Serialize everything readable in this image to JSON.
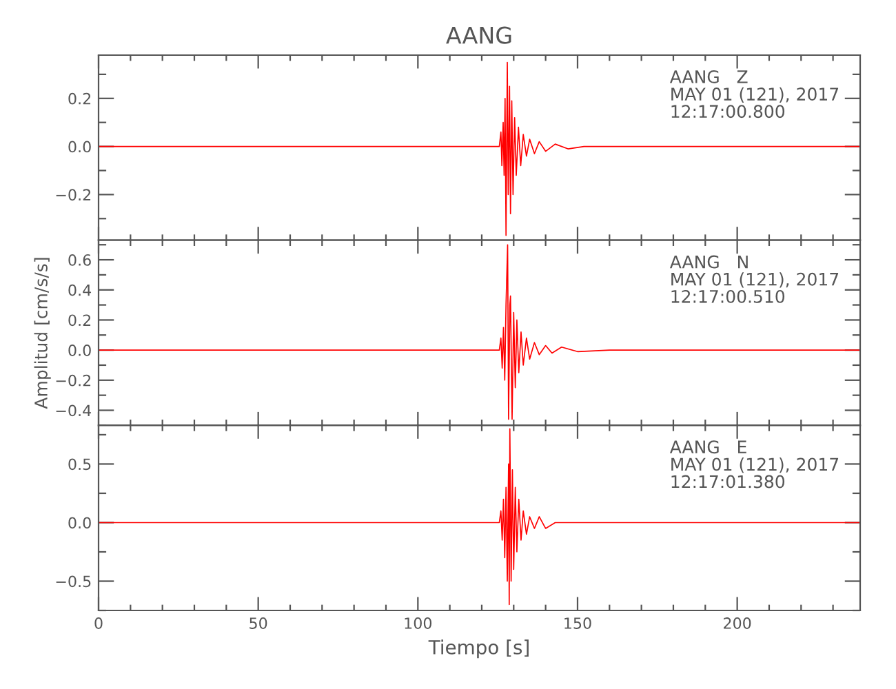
{
  "chart_data": [
    {
      "type": "line",
      "title": "AANG",
      "tick_labels": "y",
      "annotations": [
        "AANG   Z\nMAY 01 (121), 2017\n12:17:00.800"
      ],
      "xlim": [
        0,
        238.5
      ],
      "xticks": [
        0,
        {
          "value": 10,
          "label": null
        },
        {
          "value": 20,
          "label": null
        },
        {
          "value": 30,
          "label": null
        },
        {
          "value": 40,
          "label": null
        },
        50,
        {
          "value": 60,
          "label": null
        },
        {
          "value": 70,
          "label": null
        },
        {
          "value": 80,
          "label": null
        },
        {
          "value": 90,
          "label": null
        },
        100,
        {
          "value": 110,
          "label": null
        },
        {
          "value": 120,
          "label": null
        },
        {
          "value": 130,
          "label": null
        },
        {
          "value": 140,
          "label": null
        },
        150,
        {
          "value": 160,
          "label": null
        },
        {
          "value": 170,
          "label": null
        },
        {
          "value": 180,
          "label": null
        },
        {
          "value": 190,
          "label": null
        },
        200,
        {
          "value": 210,
          "label": null
        },
        {
          "value": 220,
          "label": null
        },
        {
          "value": 230,
          "label": null
        }
      ],
      "ylim": [
        -0.39,
        0.38
      ],
      "yticks": [
        {
          "value": -0.3,
          "label": null
        },
        {
          "value": -0.2,
          "label": "−0.2"
        },
        {
          "value": -0.1,
          "label": null
        },
        {
          "value": 0.0,
          "label": "0.0"
        },
        {
          "value": 0.1,
          "label": null
        },
        {
          "value": 0.2,
          "label": "0.2"
        },
        {
          "value": 0.3,
          "label": null
        }
      ],
      "series": [
        {
          "color": "#ff0000",
          "x": [
            0,
            20,
            40,
            60,
            80,
            100,
            120,
            125.5,
            126,
            126.3,
            126.7,
            127.0,
            127.3,
            127.6,
            128.0,
            128.3,
            128.7,
            129.0,
            129.4,
            129.8,
            130.3,
            130.8,
            131.5,
            132.2,
            133,
            134,
            135,
            136.5,
            138,
            140,
            143,
            147,
            152,
            160,
            180,
            200,
            220,
            238.5
          ],
          "values": [
            0,
            0,
            0,
            0,
            0,
            0,
            0,
            0,
            0.06,
            -0.08,
            0.1,
            -0.12,
            0.2,
            -0.37,
            0.35,
            -0.2,
            0.25,
            -0.28,
            0.19,
            -0.2,
            0.12,
            -0.12,
            0.08,
            -0.08,
            0.05,
            -0.04,
            0.03,
            -0.03,
            0.02,
            -0.02,
            0.01,
            -0.01,
            0,
            0,
            0,
            0,
            0,
            0
          ]
        }
      ]
    },
    {
      "type": "line",
      "ylabel": "Amplitud [cm/s/s]",
      "tick_labels": "y",
      "annotations": [
        "AANG   N\nMAY 01 (121), 2017\n12:17:00.510"
      ],
      "xlim": [
        0,
        238.5
      ],
      "xticks": [
        0,
        {
          "value": 10,
          "label": null
        },
        {
          "value": 20,
          "label": null
        },
        {
          "value": 30,
          "label": null
        },
        {
          "value": 40,
          "label": null
        },
        50,
        {
          "value": 60,
          "label": null
        },
        {
          "value": 70,
          "label": null
        },
        {
          "value": 80,
          "label": null
        },
        {
          "value": 90,
          "label": null
        },
        100,
        {
          "value": 110,
          "label": null
        },
        {
          "value": 120,
          "label": null
        },
        {
          "value": 130,
          "label": null
        },
        {
          "value": 140,
          "label": null
        },
        150,
        {
          "value": 160,
          "label": null
        },
        {
          "value": 170,
          "label": null
        },
        {
          "value": 180,
          "label": null
        },
        {
          "value": 190,
          "label": null
        },
        200,
        {
          "value": 210,
          "label": null
        },
        {
          "value": 220,
          "label": null
        },
        {
          "value": 230,
          "label": null
        }
      ],
      "ylim": [
        -0.5,
        0.73
      ],
      "yticks": [
        {
          "value": -0.5,
          "label": null
        },
        {
          "value": -0.4,
          "label": "−0.4"
        },
        {
          "value": -0.3,
          "label": null
        },
        {
          "value": -0.2,
          "label": "−0.2"
        },
        {
          "value": -0.1,
          "label": null
        },
        {
          "value": 0.0,
          "label": "0.0"
        },
        {
          "value": 0.1,
          "label": null
        },
        {
          "value": 0.2,
          "label": "0.2"
        },
        {
          "value": 0.3,
          "label": null
        },
        {
          "value": 0.4,
          "label": "0.4"
        },
        {
          "value": 0.5,
          "label": null
        },
        {
          "value": 0.6,
          "label": "0.6"
        },
        {
          "value": 0.7,
          "label": null
        }
      ],
      "series": [
        {
          "color": "#ff0000",
          "x": [
            0,
            20,
            40,
            60,
            80,
            100,
            120,
            125.5,
            126,
            126.4,
            126.8,
            127.2,
            127.6,
            128.1,
            128.4,
            128.8,
            129.0,
            129.5,
            130,
            130.5,
            131,
            131.6,
            132.3,
            133,
            134,
            135,
            136.5,
            138,
            140,
            142,
            145,
            150,
            160,
            180,
            200,
            220,
            238.5
          ],
          "values": [
            0,
            0,
            0,
            0,
            0,
            0,
            0,
            0,
            0.08,
            -0.12,
            0.15,
            -0.2,
            0.3,
            0.7,
            -0.46,
            0.3,
            0.36,
            -0.46,
            0.25,
            -0.25,
            0.2,
            -0.15,
            0.12,
            -0.1,
            0.08,
            -0.06,
            0.05,
            -0.03,
            0.03,
            -0.02,
            0.02,
            -0.01,
            0,
            0,
            0,
            0,
            0
          ]
        }
      ]
    },
    {
      "type": "line",
      "xlabel": "Tiempo [s]",
      "annotations": [
        "AANG   E\nMAY 01 (121), 2017\n12:17:01.380"
      ],
      "xlim": [
        0,
        238.5
      ],
      "xticks": [
        0,
        {
          "value": 10,
          "label": null
        },
        {
          "value": 20,
          "label": null
        },
        {
          "value": 30,
          "label": null
        },
        {
          "value": 40,
          "label": null
        },
        50,
        {
          "value": 60,
          "label": null
        },
        {
          "value": 70,
          "label": null
        },
        {
          "value": 80,
          "label": null
        },
        {
          "value": 90,
          "label": null
        },
        100,
        {
          "value": 110,
          "label": null
        },
        {
          "value": 120,
          "label": null
        },
        {
          "value": 130,
          "label": null
        },
        {
          "value": 140,
          "label": null
        },
        150,
        {
          "value": 160,
          "label": null
        },
        {
          "value": 170,
          "label": null
        },
        {
          "value": 180,
          "label": null
        },
        {
          "value": 190,
          "label": null
        },
        200,
        {
          "value": 210,
          "label": null
        },
        {
          "value": 220,
          "label": null
        },
        {
          "value": 230,
          "label": null
        }
      ],
      "ylim": [
        -0.75,
        0.83
      ],
      "yticks": [
        {
          "value": -0.75,
          "label": null
        },
        {
          "value": -0.5,
          "label": "−0.5"
        },
        {
          "value": -0.25,
          "label": null
        },
        {
          "value": 0.0,
          "label": "0.0"
        },
        {
          "value": 0.25,
          "label": null
        },
        {
          "value": 0.5,
          "label": "0.5"
        },
        {
          "value": 0.75,
          "label": null
        }
      ],
      "series": [
        {
          "color": "#ff0000",
          "x": [
            0,
            20,
            40,
            60,
            80,
            100,
            120,
            125.5,
            126,
            126.4,
            126.8,
            127.2,
            127.6,
            128.0,
            128.4,
            128.6,
            128.8,
            129.2,
            129.6,
            130,
            130.5,
            131,
            131.6,
            132.3,
            133,
            134,
            135,
            136.5,
            138,
            140,
            143,
            146,
            150,
            160,
            180,
            200,
            220,
            238.5
          ],
          "values": [
            0,
            0,
            0,
            0,
            0,
            0,
            0,
            0,
            0.1,
            -0.15,
            0.2,
            -0.3,
            0.3,
            -0.5,
            0.5,
            -0.7,
            0.8,
            -0.5,
            0.45,
            -0.4,
            0.3,
            -0.25,
            0.2,
            -0.15,
            0.1,
            -0.1,
            0.05,
            -0.05,
            0.05,
            -0.05,
            0,
            0,
            0,
            0,
            0,
            0,
            0,
            0
          ]
        }
      ]
    }
  ]
}
